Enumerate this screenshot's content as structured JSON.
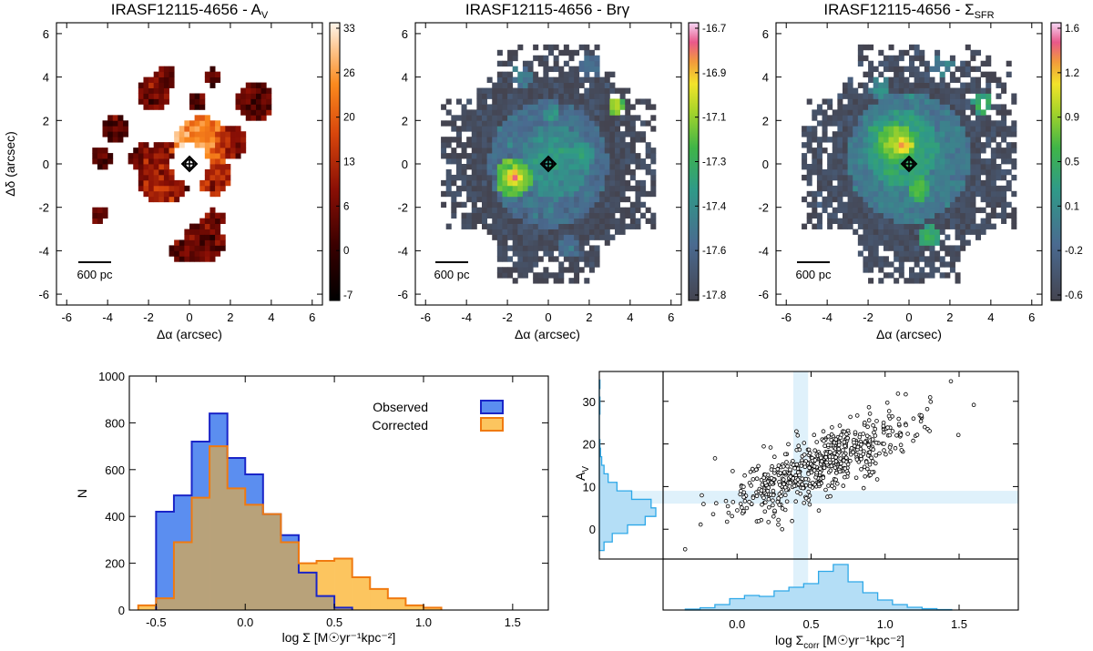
{
  "colors": {
    "observed": "#5b8ef0",
    "observed_edge": "#1a25c8",
    "corrected": "#fcc55f",
    "corrected_edge": "#f07a10",
    "overlap": "#b8a27a",
    "overlap_edge": "#7b62a0",
    "marginal": "#b4def6",
    "marginal_edge": "#2ea8e8",
    "band": "#dff1fb"
  },
  "chart_data": [
    {
      "id": "map-av",
      "type": "heatmap",
      "title": "IRASF12115-4656 - A",
      "title_sub": "V",
      "xlabel": "Δα (arcsec)",
      "ylabel": "Δδ (arcsec)",
      "xlim": [
        -6.5,
        6.5
      ],
      "ylim": [
        -6.5,
        6.5
      ],
      "xticks": [
        "-6",
        "-4",
        "-2",
        "0",
        "2",
        "4",
        "6"
      ],
      "yticks": [
        "-6",
        "-4",
        "-2",
        "0",
        "2",
        "4",
        "6"
      ],
      "colorbar": {
        "ticks": [
          "33",
          "26",
          "20",
          "13",
          "6",
          "0",
          "-7"
        ],
        "range": [
          -7,
          33
        ],
        "colormap": "heat"
      },
      "scalebar": "600 pc",
      "blobs": [
        {
          "x": 0.6,
          "y": 0.9,
          "r": 1.3,
          "v": 24
        },
        {
          "x": -0.2,
          "y": 1.2,
          "r": 0.6,
          "v": 28
        },
        {
          "x": -1.2,
          "y": -0.4,
          "r": 1.4,
          "v": 10
        },
        {
          "x": 1.2,
          "y": -0.5,
          "r": 0.9,
          "v": 12
        },
        {
          "x": 2.0,
          "y": 1.0,
          "r": 0.8,
          "v": 8
        },
        {
          "x": -2.2,
          "y": 0.2,
          "r": 0.7,
          "v": 7
        },
        {
          "x": 3.2,
          "y": 2.9,
          "r": 0.9,
          "v": 5
        },
        {
          "x": -1.8,
          "y": 3.2,
          "r": 0.8,
          "v": 6
        },
        {
          "x": -1.2,
          "y": 4.0,
          "r": 0.5,
          "v": 5
        },
        {
          "x": -3.6,
          "y": 1.6,
          "r": 0.6,
          "v": 4
        },
        {
          "x": -4.3,
          "y": 0.3,
          "r": 0.5,
          "v": 3
        },
        {
          "x": -4.4,
          "y": -2.3,
          "r": 0.4,
          "v": 5
        },
        {
          "x": 0.7,
          "y": -3.6,
          "r": 1.0,
          "v": 6
        },
        {
          "x": -0.4,
          "y": -4.0,
          "r": 0.5,
          "v": 3
        },
        {
          "x": 1.2,
          "y": -2.6,
          "r": 0.5,
          "v": 4
        },
        {
          "x": 1.1,
          "y": 4.0,
          "r": 0.4,
          "v": 2
        },
        {
          "x": 0.4,
          "y": 2.9,
          "r": 0.4,
          "v": 2
        }
      ]
    },
    {
      "id": "map-brg",
      "type": "heatmap",
      "title": "IRASF12115-4656 - Brγ",
      "xlabel": "Δα (arcsec)",
      "ylabel": "",
      "xlim": [
        -6.5,
        6.5
      ],
      "ylim": [
        -6.5,
        6.5
      ],
      "xticks": [
        "-6",
        "-4",
        "-2",
        "0",
        "2",
        "4",
        "6"
      ],
      "yticks": [
        "-6",
        "-4",
        "-2",
        "0",
        "2",
        "4",
        "6"
      ],
      "colorbar": {
        "ticks": [
          "-16.7",
          "-16.9",
          "-17.1",
          "-17.3",
          "-17.4",
          "-17.6",
          "-17.8"
        ],
        "range": [
          -17.8,
          -16.7
        ],
        "colormap": "rainbow"
      },
      "scalebar": "600 pc",
      "blobs": [
        {
          "x": 0.0,
          "y": 0.0,
          "r": 5.2,
          "v": -17.75
        },
        {
          "x": 0.0,
          "y": 0.0,
          "r": 2.9,
          "v": -17.5
        },
        {
          "x": 0.3,
          "y": 0.1,
          "r": 1.7,
          "v": -17.35
        },
        {
          "x": -1.7,
          "y": -0.6,
          "r": 0.9,
          "v": -17.0
        },
        {
          "x": -1.7,
          "y": -0.6,
          "r": 0.45,
          "v": -16.8
        },
        {
          "x": 1.5,
          "y": 0.4,
          "r": 0.7,
          "v": -17.3
        },
        {
          "x": 3.4,
          "y": 2.7,
          "r": 0.45,
          "v": -17.0
        },
        {
          "x": -1.3,
          "y": 4.0,
          "r": 0.5,
          "v": -17.45
        },
        {
          "x": 1.0,
          "y": -3.8,
          "r": 0.5,
          "v": -17.5
        },
        {
          "x": 2.0,
          "y": 4.5,
          "r": 0.6,
          "v": -17.55
        },
        {
          "x": 0.2,
          "y": 2.3,
          "r": 0.4,
          "v": -17.3
        }
      ]
    },
    {
      "id": "map-sfr",
      "type": "heatmap",
      "title": "IRASF12115-4656 - Σ",
      "title_sub": "SFR",
      "xlabel": "Δα (arcsec)",
      "ylabel": "",
      "xlim": [
        -6.5,
        6.5
      ],
      "ylim": [
        -6.5,
        6.5
      ],
      "xticks": [
        "-6",
        "-4",
        "-2",
        "0",
        "2",
        "4",
        "6"
      ],
      "yticks": [
        "-6",
        "-4",
        "-2",
        "0",
        "2",
        "4",
        "6"
      ],
      "colorbar": {
        "ticks": [
          "1.6",
          "1.2",
          "0.9",
          "0.5",
          "0.1",
          "-0.2",
          "-0.6"
        ],
        "range": [
          -0.6,
          1.6
        ],
        "colormap": "rainbow"
      },
      "scalebar": "600 pc",
      "blobs": [
        {
          "x": 0.0,
          "y": 0.0,
          "r": 5.4,
          "v": -0.45
        },
        {
          "x": 0.0,
          "y": 0.3,
          "r": 3.0,
          "v": 0.15
        },
        {
          "x": -0.4,
          "y": 0.7,
          "r": 1.8,
          "v": 0.55
        },
        {
          "x": -0.6,
          "y": 1.0,
          "r": 0.9,
          "v": 1.0
        },
        {
          "x": -0.3,
          "y": 0.9,
          "r": 0.45,
          "v": 1.4
        },
        {
          "x": 0.5,
          "y": -1.1,
          "r": 0.6,
          "v": 0.8
        },
        {
          "x": 3.6,
          "y": 2.8,
          "r": 0.5,
          "v": 0.7
        },
        {
          "x": 1.6,
          "y": 4.5,
          "r": 0.6,
          "v": 0.1
        },
        {
          "x": 1.0,
          "y": -3.3,
          "r": 0.5,
          "v": 0.6
        },
        {
          "x": -1.4,
          "y": 3.5,
          "r": 0.5,
          "v": 0.2
        }
      ]
    },
    {
      "id": "hist",
      "type": "bar",
      "xlabel": "log Σ [M☉yr⁻¹kpc⁻²]",
      "ylabel": "N",
      "xlim": [
        -0.65,
        1.7
      ],
      "ylim": [
        0,
        1000
      ],
      "xticks": [
        "-0.5",
        "0.0",
        "0.5",
        "1.0",
        "1.5"
      ],
      "yticks": [
        "0",
        "200",
        "400",
        "600",
        "800",
        "1000"
      ],
      "bin_width": 0.1,
      "legend": [
        "Observed",
        "Corrected"
      ],
      "series": [
        {
          "name": "Observed",
          "start": -0.5,
          "values": [
            420,
            490,
            720,
            840,
            650,
            580,
            410,
            320,
            160,
            60,
            10
          ]
        },
        {
          "name": "Corrected",
          "start": -0.6,
          "values": [
            20,
            50,
            290,
            480,
            700,
            520,
            450,
            410,
            290,
            200,
            210,
            220,
            140,
            90,
            50,
            20,
            10
          ]
        }
      ]
    },
    {
      "id": "scatter",
      "type": "scatter",
      "xlabel": "log Σ",
      "xlabel_sub": "corr",
      "xlabel_tail": " [M☉yr⁻¹kpc⁻²]",
      "ylabel": "A",
      "ylabel_sub": "V",
      "xlim": [
        -0.5,
        1.9
      ],
      "ylim": [
        -7,
        37
      ],
      "xticks": [
        "0.0",
        "0.5",
        "1.0",
        "1.5"
      ],
      "yticks": [
        "0",
        "10",
        "20",
        "30"
      ],
      "band_x": [
        0.38,
        0.48
      ],
      "band_y": [
        6,
        9
      ],
      "trend": {
        "slope": 15,
        "intercept": 6.5,
        "scatter": 3.5,
        "n": 620,
        "x_mean": 0.55,
        "x_sd": 0.3
      },
      "marginal_x": {
        "start": -0.35,
        "width": 0.1,
        "values": [
          2,
          5,
          12,
          25,
          32,
          30,
          42,
          50,
          58,
          85,
          100,
          62,
          38,
          22,
          12,
          6,
          3,
          1
        ]
      },
      "marginal_y": {
        "start": -5,
        "width": 2,
        "values": [
          8,
          22,
          48,
          78,
          96,
          88,
          55,
          30,
          15,
          8,
          4,
          2,
          1,
          0,
          0,
          0,
          1,
          1,
          0,
          1
        ]
      }
    }
  ]
}
